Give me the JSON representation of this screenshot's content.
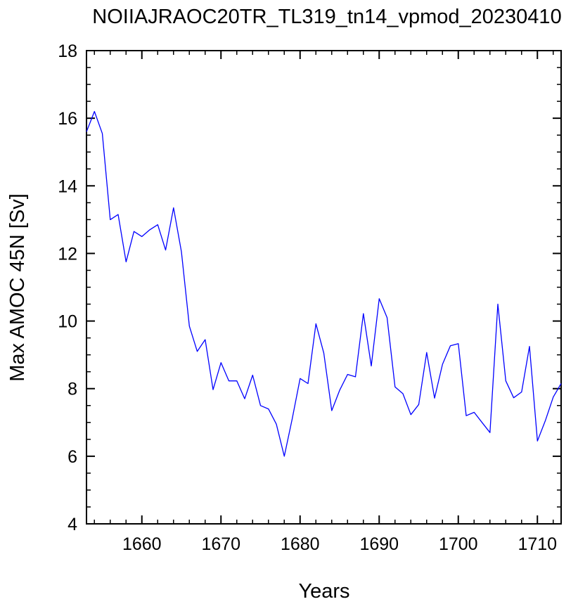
{
  "chart_data": {
    "type": "line",
    "title": "NOIIAJRAOC20TR_TL319_tn14_vpmod_20230410",
    "xlabel": "Years",
    "ylabel": "Max AMOC 45N [Sv]",
    "xlim": [
      1653,
      1713
    ],
    "ylim": [
      4,
      18
    ],
    "x_ticks": [
      1660,
      1670,
      1680,
      1690,
      1700,
      1710
    ],
    "x_tick_labels": [
      "1660",
      "1670",
      "1680",
      "1690",
      "1700",
      "1710"
    ],
    "y_ticks": [
      4,
      6,
      8,
      10,
      12,
      14,
      16,
      18
    ],
    "y_tick_labels": [
      "4",
      "6",
      "8",
      "10",
      "12",
      "14",
      "16",
      "18"
    ],
    "grid": false,
    "series": [
      {
        "color": "#0000ff",
        "x": [
          1653,
          1654,
          1655,
          1656,
          1657,
          1658,
          1659,
          1660,
          1661,
          1662,
          1663,
          1664,
          1665,
          1666,
          1667,
          1668,
          1669,
          1670,
          1671,
          1672,
          1673,
          1674,
          1675,
          1676,
          1677,
          1678,
          1679,
          1680,
          1681,
          1682,
          1683,
          1684,
          1685,
          1686,
          1687,
          1688,
          1689,
          1690,
          1691,
          1692,
          1693,
          1694,
          1695,
          1696,
          1697,
          1698,
          1699,
          1700,
          1701,
          1702,
          1703,
          1704,
          1705,
          1706,
          1707,
          1708,
          1709,
          1710,
          1711,
          1712,
          1713
        ],
        "y": [
          15.6,
          16.2,
          15.55,
          13.0,
          13.15,
          11.75,
          12.65,
          12.5,
          12.7,
          12.85,
          12.1,
          13.35,
          12.05,
          9.85,
          9.1,
          9.45,
          7.97,
          8.77,
          8.23,
          8.23,
          7.7,
          8.4,
          7.5,
          7.4,
          6.95,
          6.0,
          7.1,
          8.3,
          8.15,
          9.92,
          9.05,
          7.35,
          7.95,
          8.42,
          8.35,
          10.22,
          8.67,
          10.66,
          10.1,
          8.05,
          7.85,
          7.23,
          7.53,
          9.07,
          7.72,
          8.72,
          9.27,
          9.33,
          7.2,
          7.3,
          7.0,
          6.7,
          10.5,
          8.23,
          7.73,
          7.9,
          9.25,
          6.45,
          7.05,
          7.75,
          8.15
        ]
      }
    ]
  }
}
